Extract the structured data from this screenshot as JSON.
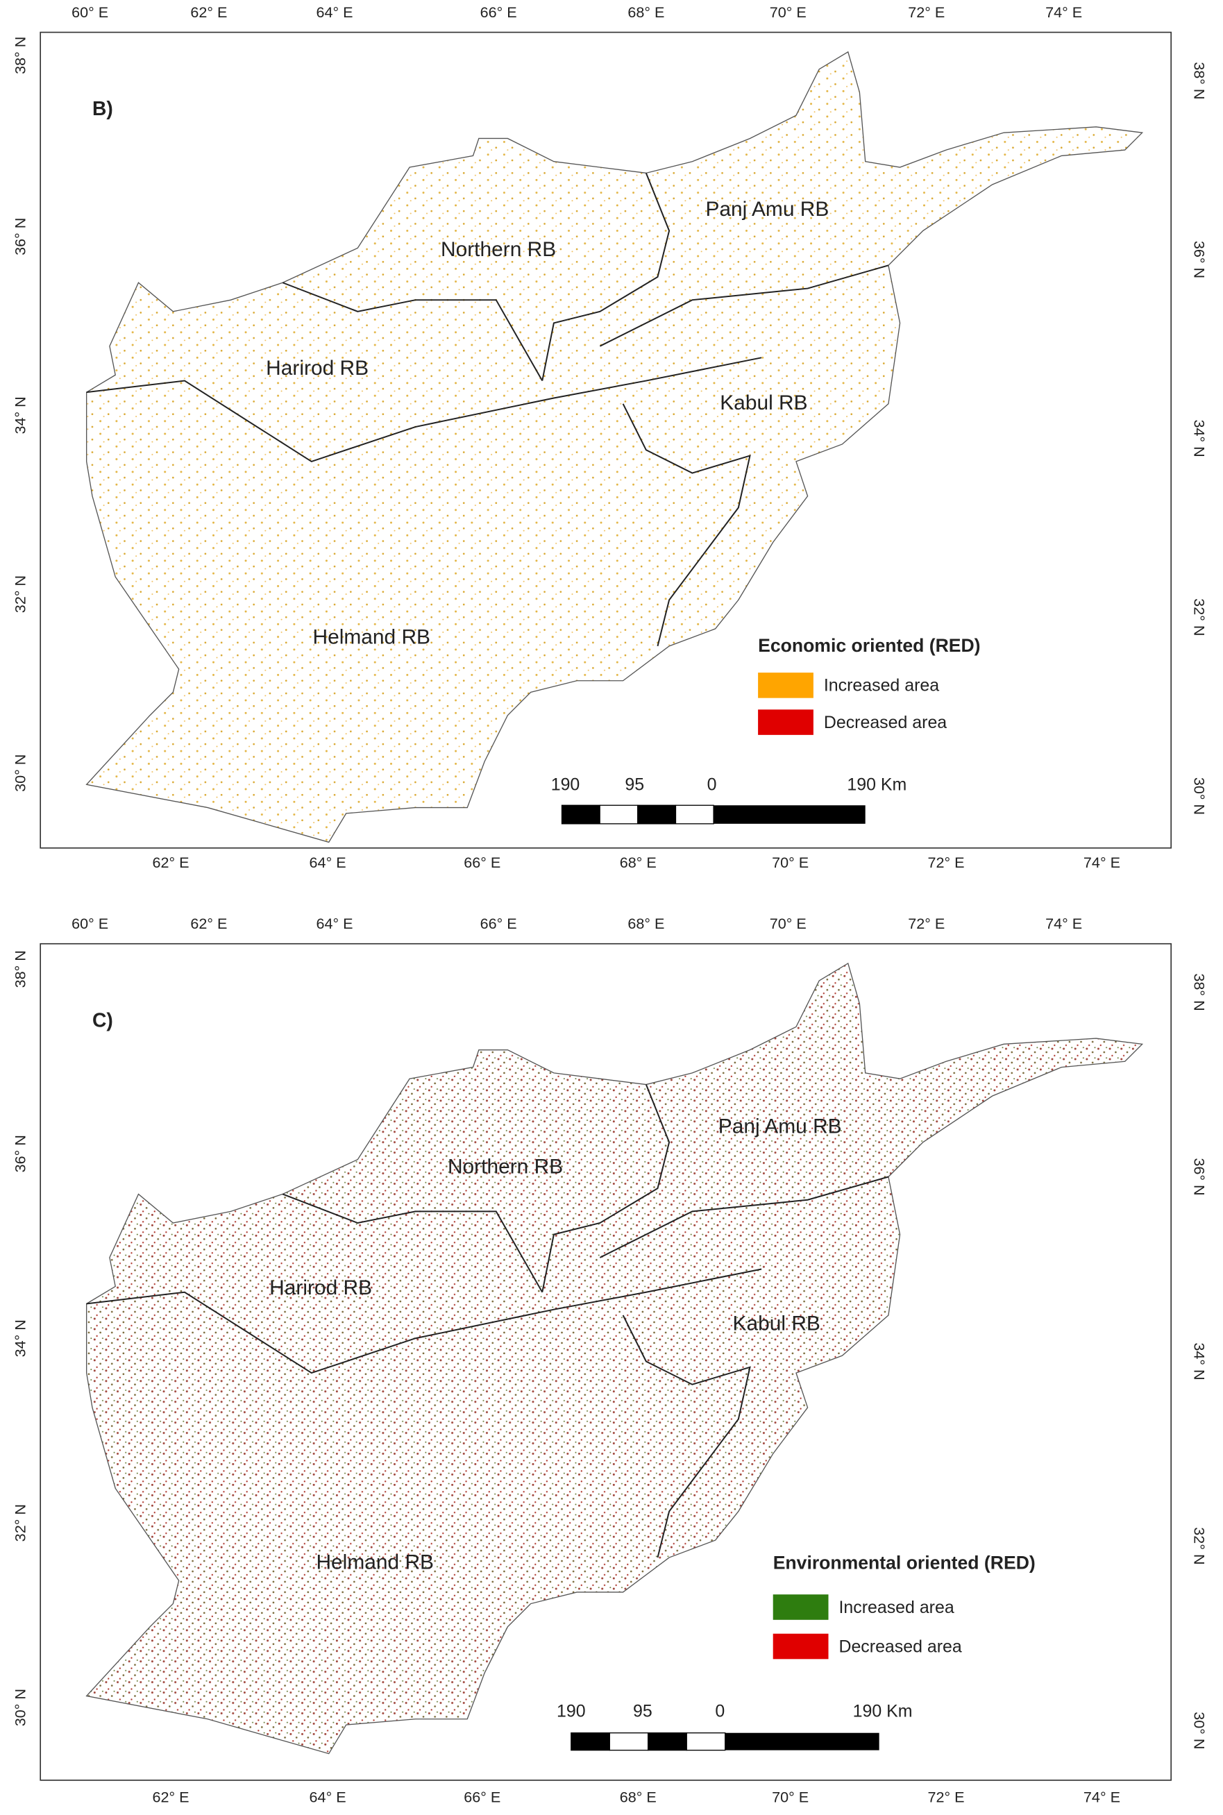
{
  "panels": [
    {
      "label": "B)",
      "basins": [
        "Northern RB",
        "Panj Amu RB",
        "Harirod RB",
        "Kabul RB",
        "Helmand RB"
      ],
      "legend": {
        "title": "Economic oriented (RED)",
        "items": [
          {
            "label": "Increased area",
            "color": "#ffa500"
          },
          {
            "label": "Decreased area",
            "color": "#e00000"
          }
        ]
      },
      "scale_bar": [
        "190",
        "95",
        "0",
        "190 Km"
      ],
      "lon_top": [
        "60° E",
        "62° E",
        "64° E",
        "66° E",
        "68° E",
        "70° E",
        "72° E",
        "74° E"
      ],
      "lon_bottom": [
        "62° E",
        "64° E",
        "66° E",
        "68° E",
        "70° E",
        "72° E",
        "74° E"
      ],
      "lat_left": [
        "38° N",
        "36° N",
        "34° N",
        "32° N",
        "30° N"
      ],
      "lat_right": [
        "38° N",
        "36° N",
        "34° N",
        "32° N",
        "30° N"
      ]
    },
    {
      "label": "C)",
      "basins": [
        "Northern RB",
        "Panj Amu RB",
        "Harirod RB",
        "Kabul RB",
        "Helmand RB"
      ],
      "legend": {
        "title": "Environmental oriented (RED)",
        "items": [
          {
            "label": "Increased area",
            "color": "#2e7d0f"
          },
          {
            "label": "Decreased area",
            "color": "#e00000"
          }
        ]
      },
      "scale_bar": [
        "190",
        "95",
        "0",
        "190 Km"
      ],
      "lon_top": [
        "60° E",
        "62° E",
        "64° E",
        "66° E",
        "68° E",
        "70° E",
        "72° E",
        "74° E"
      ],
      "lon_bottom": [
        "62° E",
        "64° E",
        "66° E",
        "68° E",
        "70° E",
        "72° E",
        "74° E"
      ],
      "lat_left": [
        "38° N",
        "36° N",
        "34° N",
        "32° N",
        "30° N"
      ],
      "lat_right": [
        "38° N",
        "36° N",
        "34° N",
        "32° N",
        "30° N"
      ]
    }
  ]
}
